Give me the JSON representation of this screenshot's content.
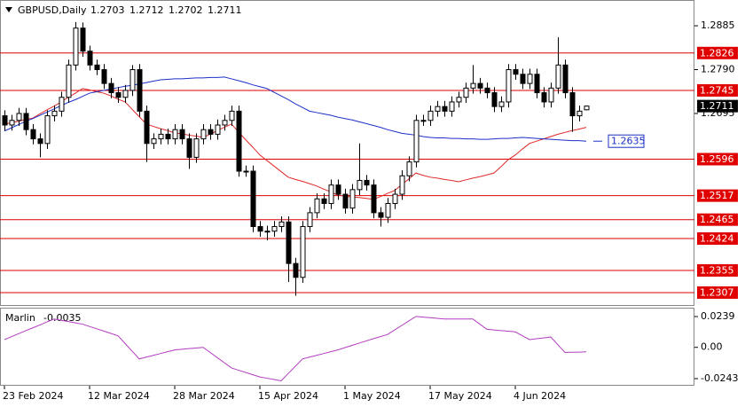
{
  "chart_data": [
    {
      "type": "candlestick",
      "symbol": "GBPUSD,Daily",
      "categories": [
        "23 Feb 2024",
        null,
        null,
        null,
        null,
        null,
        null,
        null,
        null,
        null,
        null,
        null,
        "12 Mar 2024",
        null,
        null,
        null,
        null,
        null,
        null,
        null,
        null,
        null,
        null,
        null,
        "28 Mar 2024",
        null,
        null,
        null,
        null,
        null,
        null,
        null,
        null,
        null,
        null,
        null,
        "15 Apr 2024",
        null,
        null,
        null,
        null,
        null,
        null,
        null,
        null,
        null,
        null,
        null,
        "1 May 2024",
        null,
        null,
        null,
        null,
        null,
        null,
        null,
        null,
        null,
        null,
        null,
        "17 May 2024",
        null,
        null,
        null,
        null,
        null,
        null,
        null,
        null,
        null,
        null,
        null,
        "4 Jun 2024",
        null,
        null,
        null,
        null,
        null,
        null,
        null,
        null,
        null,
        null
      ],
      "open": [
        1.269,
        1.267,
        1.268,
        1.2695,
        1.266,
        1.264,
        1.263,
        1.269,
        1.27,
        1.273,
        1.28,
        1.288,
        1.283,
        1.28,
        1.279,
        1.276,
        1.274,
        1.273,
        1.2745,
        1.279,
        1.27,
        1.263,
        1.264,
        1.265,
        1.264,
        1.266,
        1.264,
        1.26,
        1.264,
        1.266,
        1.265,
        1.267,
        1.268,
        1.27,
        1.257,
        1.257,
        1.245,
        1.244,
        1.244,
        1.245,
        1.246,
        1.237,
        1.234,
        1.245,
        1.248,
        1.251,
        1.25,
        1.254,
        1.252,
        1.249,
        1.253,
        1.255,
        1.254,
        1.248,
        1.247,
        1.25,
        1.252,
        1.256,
        1.259,
        1.268,
        1.268,
        1.27,
        1.271,
        1.27,
        1.272,
        1.273,
        1.275,
        1.276,
        1.275,
        1.274,
        1.271,
        1.272,
        1.279,
        1.278,
        1.276,
        1.278,
        1.274,
        1.272,
        1.275,
        1.28,
        1.274,
        1.269,
        1.2703
      ],
      "high": [
        1.2702,
        1.2692,
        1.2707,
        1.2707,
        1.2672,
        1.2652,
        1.2702,
        1.2712,
        1.2742,
        1.2812,
        1.2893,
        1.2892,
        1.2842,
        1.2812,
        1.2802,
        1.2772,
        1.2752,
        1.2757,
        1.28,
        1.2802,
        1.2712,
        1.2652,
        1.2662,
        1.2662,
        1.2672,
        1.2672,
        1.2652,
        1.2652,
        1.2672,
        1.2672,
        1.2682,
        1.2692,
        1.2712,
        1.2712,
        1.2582,
        1.2582,
        1.2462,
        1.2452,
        1.2462,
        1.2472,
        1.2472,
        1.2382,
        1.2462,
        1.2492,
        1.2522,
        1.2522,
        1.2552,
        1.2552,
        1.2532,
        1.2542,
        1.263,
        1.2562,
        1.2552,
        1.2492,
        1.2512,
        1.2532,
        1.2572,
        1.2602,
        1.2692,
        1.2692,
        1.2712,
        1.2722,
        1.2722,
        1.2732,
        1.2742,
        1.2762,
        1.28,
        1.2772,
        1.2762,
        1.2752,
        1.2732,
        1.2802,
        1.2802,
        1.2792,
        1.2792,
        1.2792,
        1.2752,
        1.2762,
        1.286,
        1.2812,
        1.2752,
        1.2712,
        1.2712
      ],
      "low": [
        1.2658,
        1.2658,
        1.2668,
        1.2648,
        1.2628,
        1.26,
        1.2618,
        1.2678,
        1.2688,
        1.2718,
        1.2788,
        1.2818,
        1.2788,
        1.2778,
        1.2748,
        1.2728,
        1.2718,
        1.2718,
        1.2733,
        1.2688,
        1.259,
        1.2618,
        1.2628,
        1.2628,
        1.2628,
        1.2628,
        1.2575,
        1.2588,
        1.2628,
        1.2638,
        1.2638,
        1.2658,
        1.2668,
        1.2558,
        1.2558,
        1.2438,
        1.2428,
        1.242,
        1.2428,
        1.2438,
        1.233,
        1.23,
        1.2328,
        1.2438,
        1.2468,
        1.2488,
        1.2488,
        1.2508,
        1.2478,
        1.2478,
        1.2518,
        1.2528,
        1.2468,
        1.245,
        1.2458,
        1.2488,
        1.2508,
        1.2548,
        1.2578,
        1.2668,
        1.2668,
        1.2688,
        1.2688,
        1.2688,
        1.2708,
        1.2718,
        1.2738,
        1.2738,
        1.2728,
        1.2698,
        1.2698,
        1.2708,
        1.2768,
        1.2748,
        1.2748,
        1.2728,
        1.2708,
        1.2708,
        1.2738,
        1.2728,
        1.2655,
        1.2678,
        1.2702
      ],
      "close": [
        1.267,
        1.268,
        1.2695,
        1.266,
        1.264,
        1.263,
        1.269,
        1.27,
        1.273,
        1.28,
        1.288,
        1.283,
        1.28,
        1.279,
        1.276,
        1.274,
        1.273,
        1.2745,
        1.279,
        1.27,
        1.263,
        1.264,
        1.265,
        1.264,
        1.266,
        1.264,
        1.26,
        1.264,
        1.266,
        1.265,
        1.267,
        1.268,
        1.27,
        1.257,
        1.257,
        1.245,
        1.244,
        1.244,
        1.245,
        1.246,
        1.237,
        1.234,
        1.245,
        1.248,
        1.251,
        1.25,
        1.254,
        1.252,
        1.249,
        1.253,
        1.255,
        1.254,
        1.248,
        1.247,
        1.25,
        1.252,
        1.256,
        1.259,
        1.268,
        1.268,
        1.27,
        1.271,
        1.27,
        1.272,
        1.273,
        1.275,
        1.276,
        1.275,
        1.274,
        1.271,
        1.272,
        1.279,
        1.278,
        1.276,
        1.278,
        1.274,
        1.272,
        1.275,
        1.28,
        1.274,
        1.269,
        1.27,
        1.2711
      ],
      "lines": [
        {
          "color": "#e02828",
          "values": [
            1.2672,
            1.2675,
            1.2678,
            1.2682,
            1.2685,
            1.2694,
            1.2703,
            1.2711,
            1.272,
            1.273,
            1.2739,
            1.2749,
            1.2746,
            1.2742,
            1.2739,
            1.2733,
            1.2726,
            1.272,
            1.2704,
            1.2688,
            1.2672,
            1.2667,
            1.2662,
            1.2658,
            1.2653,
            1.2651,
            1.2648,
            1.2646,
            1.2643,
            1.265,
            1.2658,
            1.2665,
            1.2672,
            1.2655,
            1.2638,
            1.2622,
            1.2605,
            1.2593,
            1.2581,
            1.2569,
            1.2557,
            1.2552,
            1.2548,
            1.2543,
            1.2538,
            1.2531,
            1.2525,
            1.2518,
            1.2516,
            1.2514,
            1.2513,
            1.2511,
            1.2509,
            1.2515,
            1.2522,
            1.2528,
            1.2541,
            1.2553,
            1.2566,
            1.2561,
            1.2557,
            1.2555,
            1.2552,
            1.255,
            1.2547,
            1.2551,
            1.2555,
            1.2558,
            1.2562,
            1.2566,
            1.258,
            1.2595,
            1.2605,
            1.2618,
            1.263,
            1.2635,
            1.264,
            1.2645,
            1.265,
            1.2654,
            1.2658,
            1.2661,
            1.2665
          ]
        },
        {
          "color": "#1c2fc8",
          "labeled": true,
          "values": [
            1.2657,
            1.2664,
            1.2671,
            1.2678,
            1.2684,
            1.2691,
            1.2698,
            1.2705,
            1.2712,
            1.2719,
            1.2725,
            1.2732,
            1.2739,
            1.2742,
            1.2745,
            1.2748,
            1.2751,
            1.2754,
            1.2756,
            1.2759,
            1.2762,
            1.2765,
            1.2768,
            1.2769,
            1.277,
            1.277,
            1.2771,
            1.2772,
            1.2772,
            1.2773,
            1.2773,
            1.2774,
            1.277,
            1.2766,
            1.2762,
            1.2757,
            1.2753,
            1.2749,
            1.2741,
            1.2733,
            1.2725,
            1.2716,
            1.2708,
            1.27,
            1.2697,
            1.2694,
            1.2691,
            1.2687,
            1.2684,
            1.2681,
            1.2677,
            1.2673,
            1.2669,
            1.2665,
            1.266,
            1.2656,
            1.2652,
            1.265,
            1.2648,
            1.2645,
            1.2643,
            1.2642,
            1.2642,
            1.2641,
            1.2641,
            1.264,
            1.264,
            1.2639,
            1.2639,
            1.264,
            1.2641,
            1.2641,
            1.2642,
            1.2643,
            1.2642,
            1.2641,
            1.264,
            1.2639,
            1.2638,
            1.2637,
            1.2636,
            1.2636,
            1.2635
          ]
        }
      ],
      "levels": {
        "color": "#e00000",
        "values": [
          1.2826,
          1.2745,
          1.2596,
          1.2517,
          1.2465,
          1.2424,
          1.2355,
          1.2307
        ]
      },
      "ylim": [
        1.228,
        1.2937
      ],
      "yticks": [
        1.2885,
        {
          "value": 1.279,
          "label": "1.2790"
        },
        1.2695
      ]
    },
    {
      "type": "line",
      "name": "Marlin",
      "color": "#b23cc0",
      "values": [
        0.006,
        0.0083,
        0.0106,
        0.0129,
        0.0151,
        0.0174,
        0.0197,
        0.022,
        0.021,
        0.02,
        0.019,
        0.018,
        0.0162,
        0.0144,
        0.0126,
        0.0108,
        0.009,
        0.003,
        -0.003,
        -0.009,
        -0.0076,
        -0.0062,
        -0.0048,
        -0.0034,
        -0.002,
        -0.0015,
        -0.001,
        -0.0005,
        0.0,
        -0.004,
        -0.008,
        -0.012,
        -0.016,
        -0.0178,
        -0.0195,
        -0.0213,
        -0.023,
        -0.024,
        -0.025,
        -0.026,
        -0.0203,
        -0.0147,
        -0.009,
        -0.0076,
        -0.0062,
        -0.0048,
        -0.0034,
        -0.002,
        -0.0002,
        0.0015,
        0.0033,
        0.005,
        0.0067,
        0.0083,
        0.01,
        0.0135,
        0.017,
        0.0205,
        0.024,
        0.0235,
        0.023,
        0.0225,
        0.022,
        0.022,
        0.022,
        0.022,
        0.022,
        0.018,
        0.014,
        0.0135,
        0.013,
        0.0125,
        0.012,
        0.009,
        0.006,
        0.0067,
        0.0073,
        0.008,
        0.002,
        -0.004,
        -0.0038,
        -0.0037,
        -0.0035
      ],
      "ylim": [
        -0.0298,
        0.0294
      ],
      "yticks": [
        0.0239,
        {
          "value": 0,
          "label": "0.00"
        },
        -0.0243
      ]
    }
  ]
}
